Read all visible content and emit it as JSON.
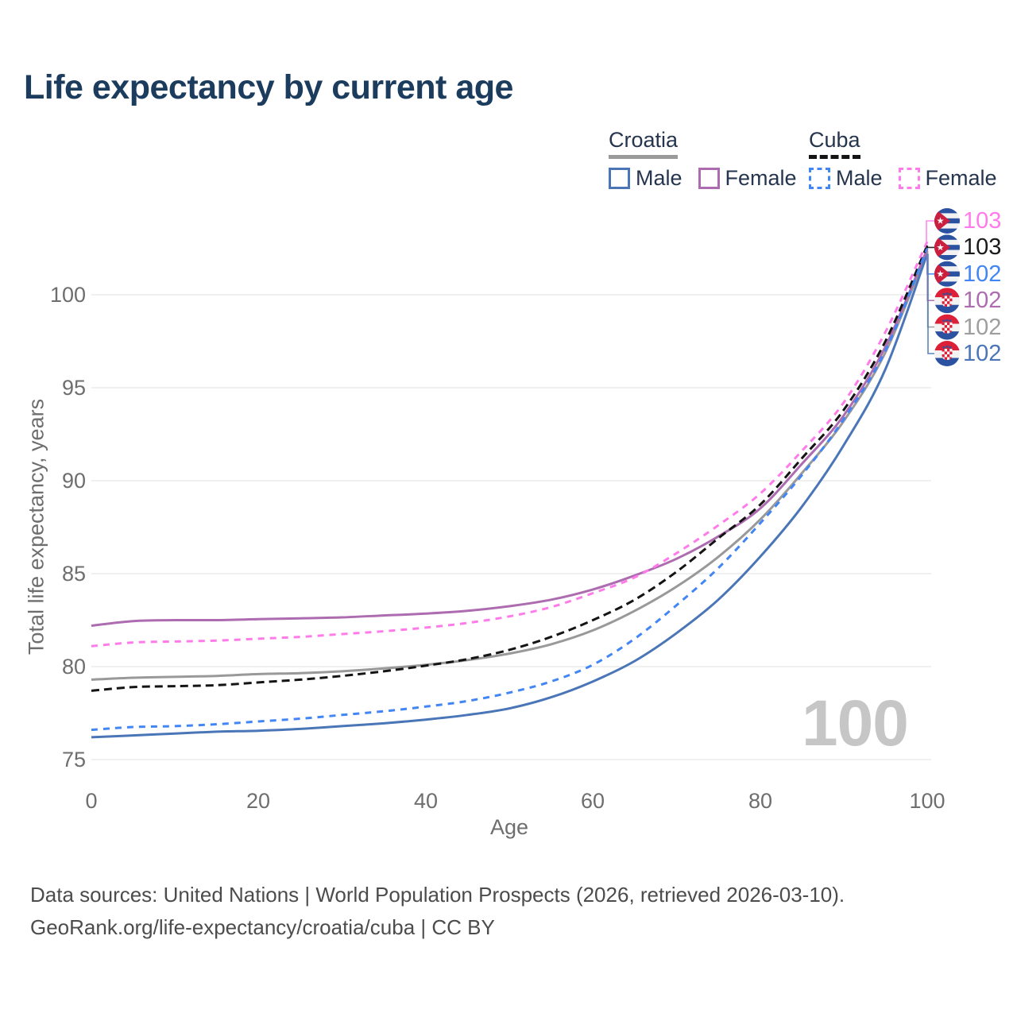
{
  "title": "Life expectancy by current age",
  "legend": {
    "croatia": {
      "label": "Croatia",
      "male": "Male",
      "female": "Female"
    },
    "cuba": {
      "label": "Cuba",
      "male": "Male",
      "female": "Female"
    }
  },
  "axes": {
    "y_title": "Total life expectancy, years",
    "x_title": "Age",
    "y_ticks": [
      75,
      80,
      85,
      90,
      95,
      100
    ],
    "x_ticks": [
      0,
      20,
      40,
      60,
      80,
      100
    ]
  },
  "age_indicator": "100",
  "footer": {
    "line1": "Data sources: United Nations | World Population Prospects (2026, retrieved 2026-03-10).",
    "line2": "GeoRank.org/life-expectancy/croatia/cuba | CC BY"
  },
  "colors": {
    "title": "#1c3c5e",
    "legend_text": "#26354e",
    "axis_text": "#6e6e6e",
    "grid": "#ebebeb",
    "watermark": "#c6c6c6",
    "footer_text": "#4c4c4c",
    "croatia_male": "#4a76b8",
    "croatia_female": "#ad6cb0",
    "croatia_total": "#999999",
    "cuba_male": "#4285f4",
    "cuba_female": "#ff7bea",
    "cuba_total": "#141414",
    "flag_blue": "#2b52a0",
    "flag_red_cuba": "#cb1f3f",
    "flag_red_croatia": "#dd2037"
  },
  "chart_data": {
    "type": "line",
    "title": "Life expectancy by current age",
    "xlabel": "Age",
    "ylabel": "Total life expectancy, years",
    "xlim": [
      0,
      100
    ],
    "ylim": [
      74,
      103.5
    ],
    "grid": "horizontal",
    "legend_position": "top-right",
    "x": [
      0,
      5,
      10,
      15,
      20,
      25,
      30,
      35,
      40,
      45,
      50,
      55,
      60,
      65,
      70,
      75,
      80,
      85,
      90,
      95,
      100
    ],
    "series": [
      {
        "name": "Croatia",
        "country": "croatia",
        "sex": "total",
        "color": "#999999",
        "dash": null,
        "values": [
          79.3,
          79.4,
          79.45,
          79.5,
          79.6,
          79.65,
          79.75,
          79.9,
          80.1,
          80.35,
          80.7,
          81.2,
          81.95,
          83.0,
          84.3,
          85.9,
          87.9,
          90.4,
          93.2,
          96.9,
          102.35
        ],
        "end_label": "102",
        "end_label_color": "#9e9e9e",
        "flag": "croatia",
        "label_row": 4
      },
      {
        "name": "Croatia Male",
        "country": "croatia",
        "sex": "male",
        "color": "#4a76b8",
        "dash": null,
        "values": [
          76.2,
          76.3,
          76.4,
          76.5,
          76.55,
          76.65,
          76.8,
          76.95,
          77.15,
          77.4,
          77.75,
          78.35,
          79.2,
          80.3,
          81.8,
          83.6,
          85.9,
          88.6,
          91.9,
          96.0,
          102.2
        ],
        "end_label": "102",
        "end_label_color": "#4a76b8",
        "flag": "croatia",
        "label_row": 5
      },
      {
        "name": "Croatia Female",
        "country": "croatia",
        "sex": "female",
        "color": "#ad6cb0",
        "dash": null,
        "values": [
          82.2,
          82.45,
          82.5,
          82.5,
          82.55,
          82.6,
          82.65,
          82.75,
          82.85,
          83.0,
          83.25,
          83.6,
          84.15,
          84.9,
          85.8,
          87.0,
          88.5,
          90.9,
          93.5,
          97.2,
          102.45
        ],
        "end_label": "102",
        "end_label_color": "#ad6cb0",
        "flag": "croatia",
        "label_row": 3
      },
      {
        "name": "Cuba",
        "country": "cuba",
        "sex": "total",
        "color": "#141414",
        "dash": "10 6",
        "values": [
          78.7,
          78.9,
          78.95,
          79.0,
          79.15,
          79.3,
          79.5,
          79.75,
          80.05,
          80.4,
          80.9,
          81.6,
          82.5,
          83.6,
          85.1,
          86.9,
          88.7,
          91.2,
          93.8,
          97.5,
          102.65
        ],
        "end_label": "103",
        "end_label_color": "#1a1a1a",
        "flag": "cuba",
        "label_row": 1
      },
      {
        "name": "Cuba Male",
        "country": "cuba",
        "sex": "male",
        "color": "#4285f4",
        "dash": "8 7",
        "values": [
          76.6,
          76.75,
          76.8,
          76.9,
          77.05,
          77.2,
          77.4,
          77.6,
          77.85,
          78.15,
          78.6,
          79.2,
          80.1,
          81.5,
          83.3,
          85.3,
          87.7,
          90.3,
          93.3,
          97.0,
          102.5
        ],
        "end_label": "102",
        "end_label_color": "#4285f4",
        "flag": "cuba",
        "label_row": 2
      },
      {
        "name": "Cuba Female",
        "country": "cuba",
        "sex": "female",
        "color": "#ff7bea",
        "dash": "8 7",
        "values": [
          81.1,
          81.3,
          81.35,
          81.4,
          81.5,
          81.6,
          81.75,
          81.9,
          82.1,
          82.35,
          82.7,
          83.2,
          83.95,
          84.8,
          86.1,
          87.6,
          89.3,
          91.6,
          94.2,
          98.0,
          102.85
        ],
        "end_label": "103",
        "end_label_color": "#ff7bea",
        "flag": "cuba",
        "label_row": 0
      }
    ]
  }
}
